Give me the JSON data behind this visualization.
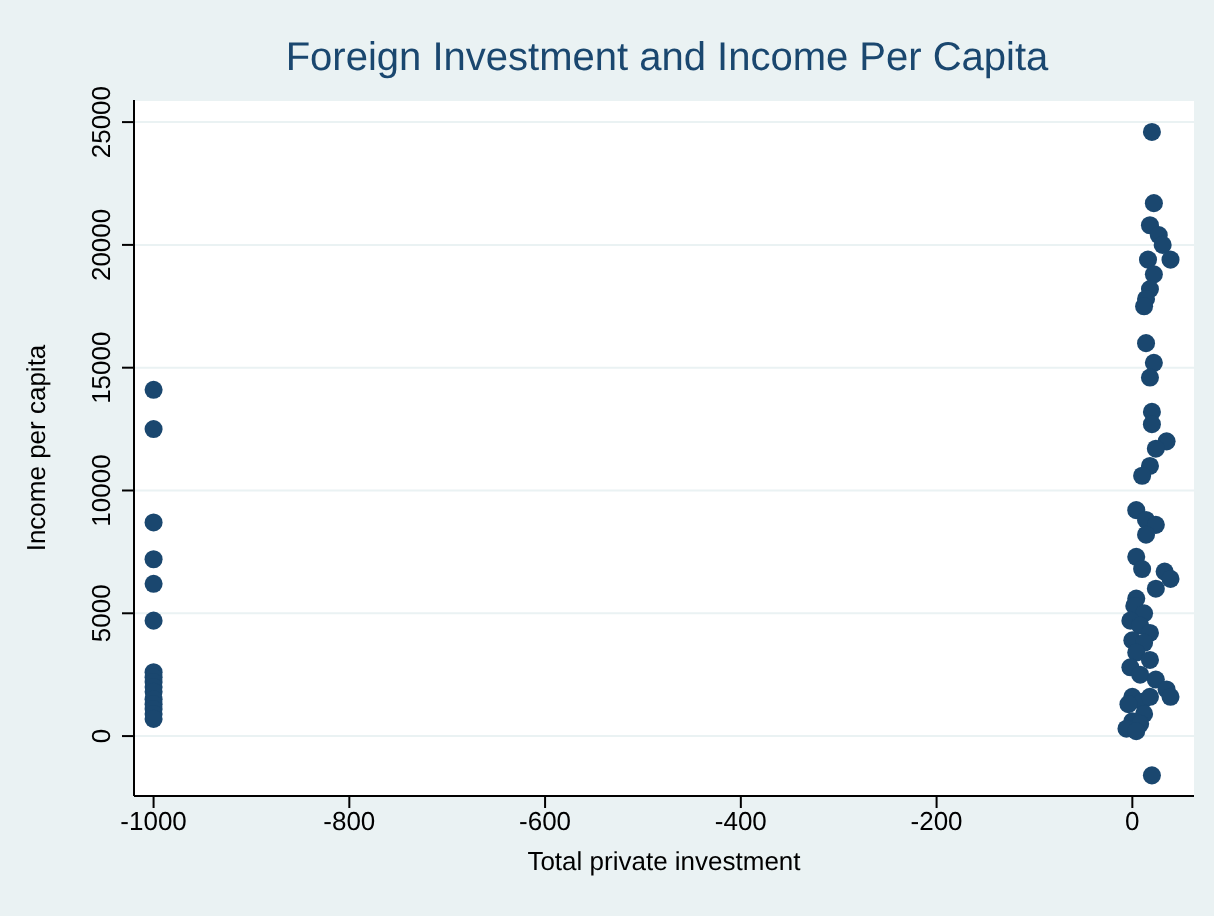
{
  "chart_data": {
    "type": "scatter",
    "title": "Foreign Investment and Income Per Capita",
    "xlabel": "Total private investment",
    "ylabel": "Income per capita",
    "xlim": [
      -1020,
      63
    ],
    "ylim": [
      -2440,
      25900
    ],
    "xticks": [
      -1000,
      -800,
      -600,
      -400,
      -200,
      0
    ],
    "yticks": [
      0,
      5000,
      10000,
      15000,
      20000,
      25000
    ],
    "grid": "y",
    "marker": "circle",
    "series": [
      {
        "color": "#1a476f",
        "x": [
          -1000,
          -1000,
          -1000,
          -1000,
          -1000,
          -1000,
          -1000,
          -1000,
          -1000,
          -1000,
          -1000,
          -1000,
          -1000,
          -1000,
          -1000,
          -1000,
          20,
          22,
          18,
          27,
          31,
          39,
          16,
          22,
          18,
          14,
          12,
          14,
          22,
          18,
          20,
          20,
          35,
          24,
          18,
          10,
          4,
          14,
          24,
          14,
          4,
          10,
          33,
          39,
          24,
          4,
          2,
          12,
          -2,
          8,
          18,
          0,
          12,
          4,
          18,
          -2,
          8,
          24,
          35,
          0,
          10,
          18,
          39,
          -4,
          12,
          0,
          8,
          -6,
          4,
          20
        ],
        "values": [
          14100,
          12500,
          8700,
          7200,
          6200,
          4700,
          2600,
          2400,
          2200,
          2000,
          1800,
          1500,
          1300,
          1100,
          900,
          700,
          24600,
          21700,
          20800,
          20400,
          20000,
          19400,
          19400,
          18800,
          18200,
          17800,
          17500,
          16000,
          15200,
          14600,
          13200,
          12700,
          12000,
          11700,
          11000,
          10600,
          9200,
          8800,
          8600,
          8200,
          7300,
          6800,
          6700,
          6400,
          6000,
          5600,
          5300,
          5000,
          4700,
          4500,
          4200,
          3900,
          3800,
          3400,
          3100,
          2800,
          2500,
          2300,
          1900,
          1600,
          1400,
          1600,
          1600,
          1300,
          900,
          600,
          500,
          300,
          200,
          -1600
        ]
      }
    ]
  }
}
